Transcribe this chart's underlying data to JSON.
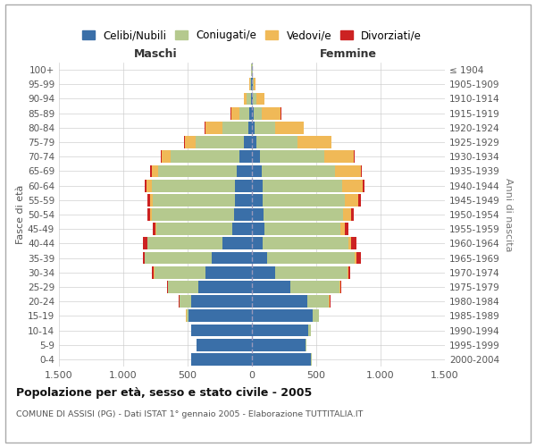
{
  "age_groups": [
    "0-4",
    "5-9",
    "10-14",
    "15-19",
    "20-24",
    "25-29",
    "30-34",
    "35-39",
    "40-44",
    "45-49",
    "50-54",
    "55-59",
    "60-64",
    "65-69",
    "70-74",
    "75-79",
    "80-84",
    "85-89",
    "90-94",
    "95-99",
    "100+"
  ],
  "birth_years": [
    "2000-2004",
    "1995-1999",
    "1990-1994",
    "1985-1989",
    "1980-1984",
    "1975-1979",
    "1970-1974",
    "1965-1969",
    "1960-1964",
    "1955-1959",
    "1950-1954",
    "1945-1949",
    "1940-1944",
    "1935-1939",
    "1930-1934",
    "1925-1929",
    "1920-1924",
    "1915-1919",
    "1910-1914",
    "1905-1909",
    "≤ 1904"
  ],
  "colors": {
    "celibi": "#3a6fa8",
    "coniugati": "#b5c98e",
    "vedovi": "#f0b957",
    "divorziati": "#cc2222"
  },
  "maschi": {
    "celibi": [
      470,
      430,
      470,
      490,
      470,
      420,
      360,
      310,
      230,
      155,
      140,
      130,
      130,
      120,
      100,
      60,
      30,
      20,
      10,
      5,
      2
    ],
    "coniugati": [
      2,
      2,
      5,
      20,
      90,
      230,
      400,
      520,
      580,
      590,
      640,
      640,
      650,
      610,
      530,
      380,
      200,
      80,
      30,
      8,
      3
    ],
    "vedovi": [
      0,
      0,
      0,
      1,
      2,
      2,
      3,
      5,
      5,
      5,
      10,
      20,
      40,
      50,
      70,
      80,
      130,
      60,
      20,
      5,
      1
    ],
    "divorziati": [
      0,
      0,
      0,
      2,
      5,
      8,
      12,
      15,
      30,
      20,
      20,
      20,
      15,
      15,
      10,
      5,
      5,
      5,
      2,
      0,
      0
    ]
  },
  "femmine": {
    "celibi": [
      460,
      420,
      440,
      470,
      430,
      300,
      180,
      120,
      80,
      95,
      90,
      85,
      80,
      75,
      60,
      35,
      20,
      15,
      10,
      5,
      2
    ],
    "coniugati": [
      3,
      5,
      15,
      50,
      170,
      380,
      560,
      680,
      670,
      590,
      620,
      640,
      620,
      570,
      500,
      320,
      160,
      60,
      25,
      8,
      2
    ],
    "vedovi": [
      0,
      0,
      0,
      1,
      3,
      5,
      10,
      15,
      20,
      35,
      60,
      100,
      160,
      200,
      230,
      260,
      220,
      150,
      60,
      15,
      3
    ],
    "divorziati": [
      0,
      0,
      0,
      2,
      5,
      10,
      15,
      30,
      40,
      30,
      25,
      20,
      15,
      10,
      10,
      5,
      5,
      5,
      2,
      0,
      0
    ]
  },
  "title": "Popolazione per età, sesso e stato civile - 2005",
  "subtitle": "COMUNE DI ASSISI (PG) - Dati ISTAT 1° gennaio 2005 - Elaborazione TUTTITALIA.IT",
  "xlabel_left": "Maschi",
  "xlabel_right": "Femmine",
  "ylabel_left": "Fasce di età",
  "ylabel_right": "Anni di nascita",
  "xlim": 1500,
  "xtick_labels": [
    "1.500",
    "1.000",
    "500",
    "0",
    "500",
    "1.000",
    "1.500"
  ],
  "legend_labels": [
    "Celibi/Nubili",
    "Coniugati/e",
    "Vedovi/e",
    "Divorziati/e"
  ],
  "background_color": "#ffffff",
  "grid_color": "#cccccc"
}
